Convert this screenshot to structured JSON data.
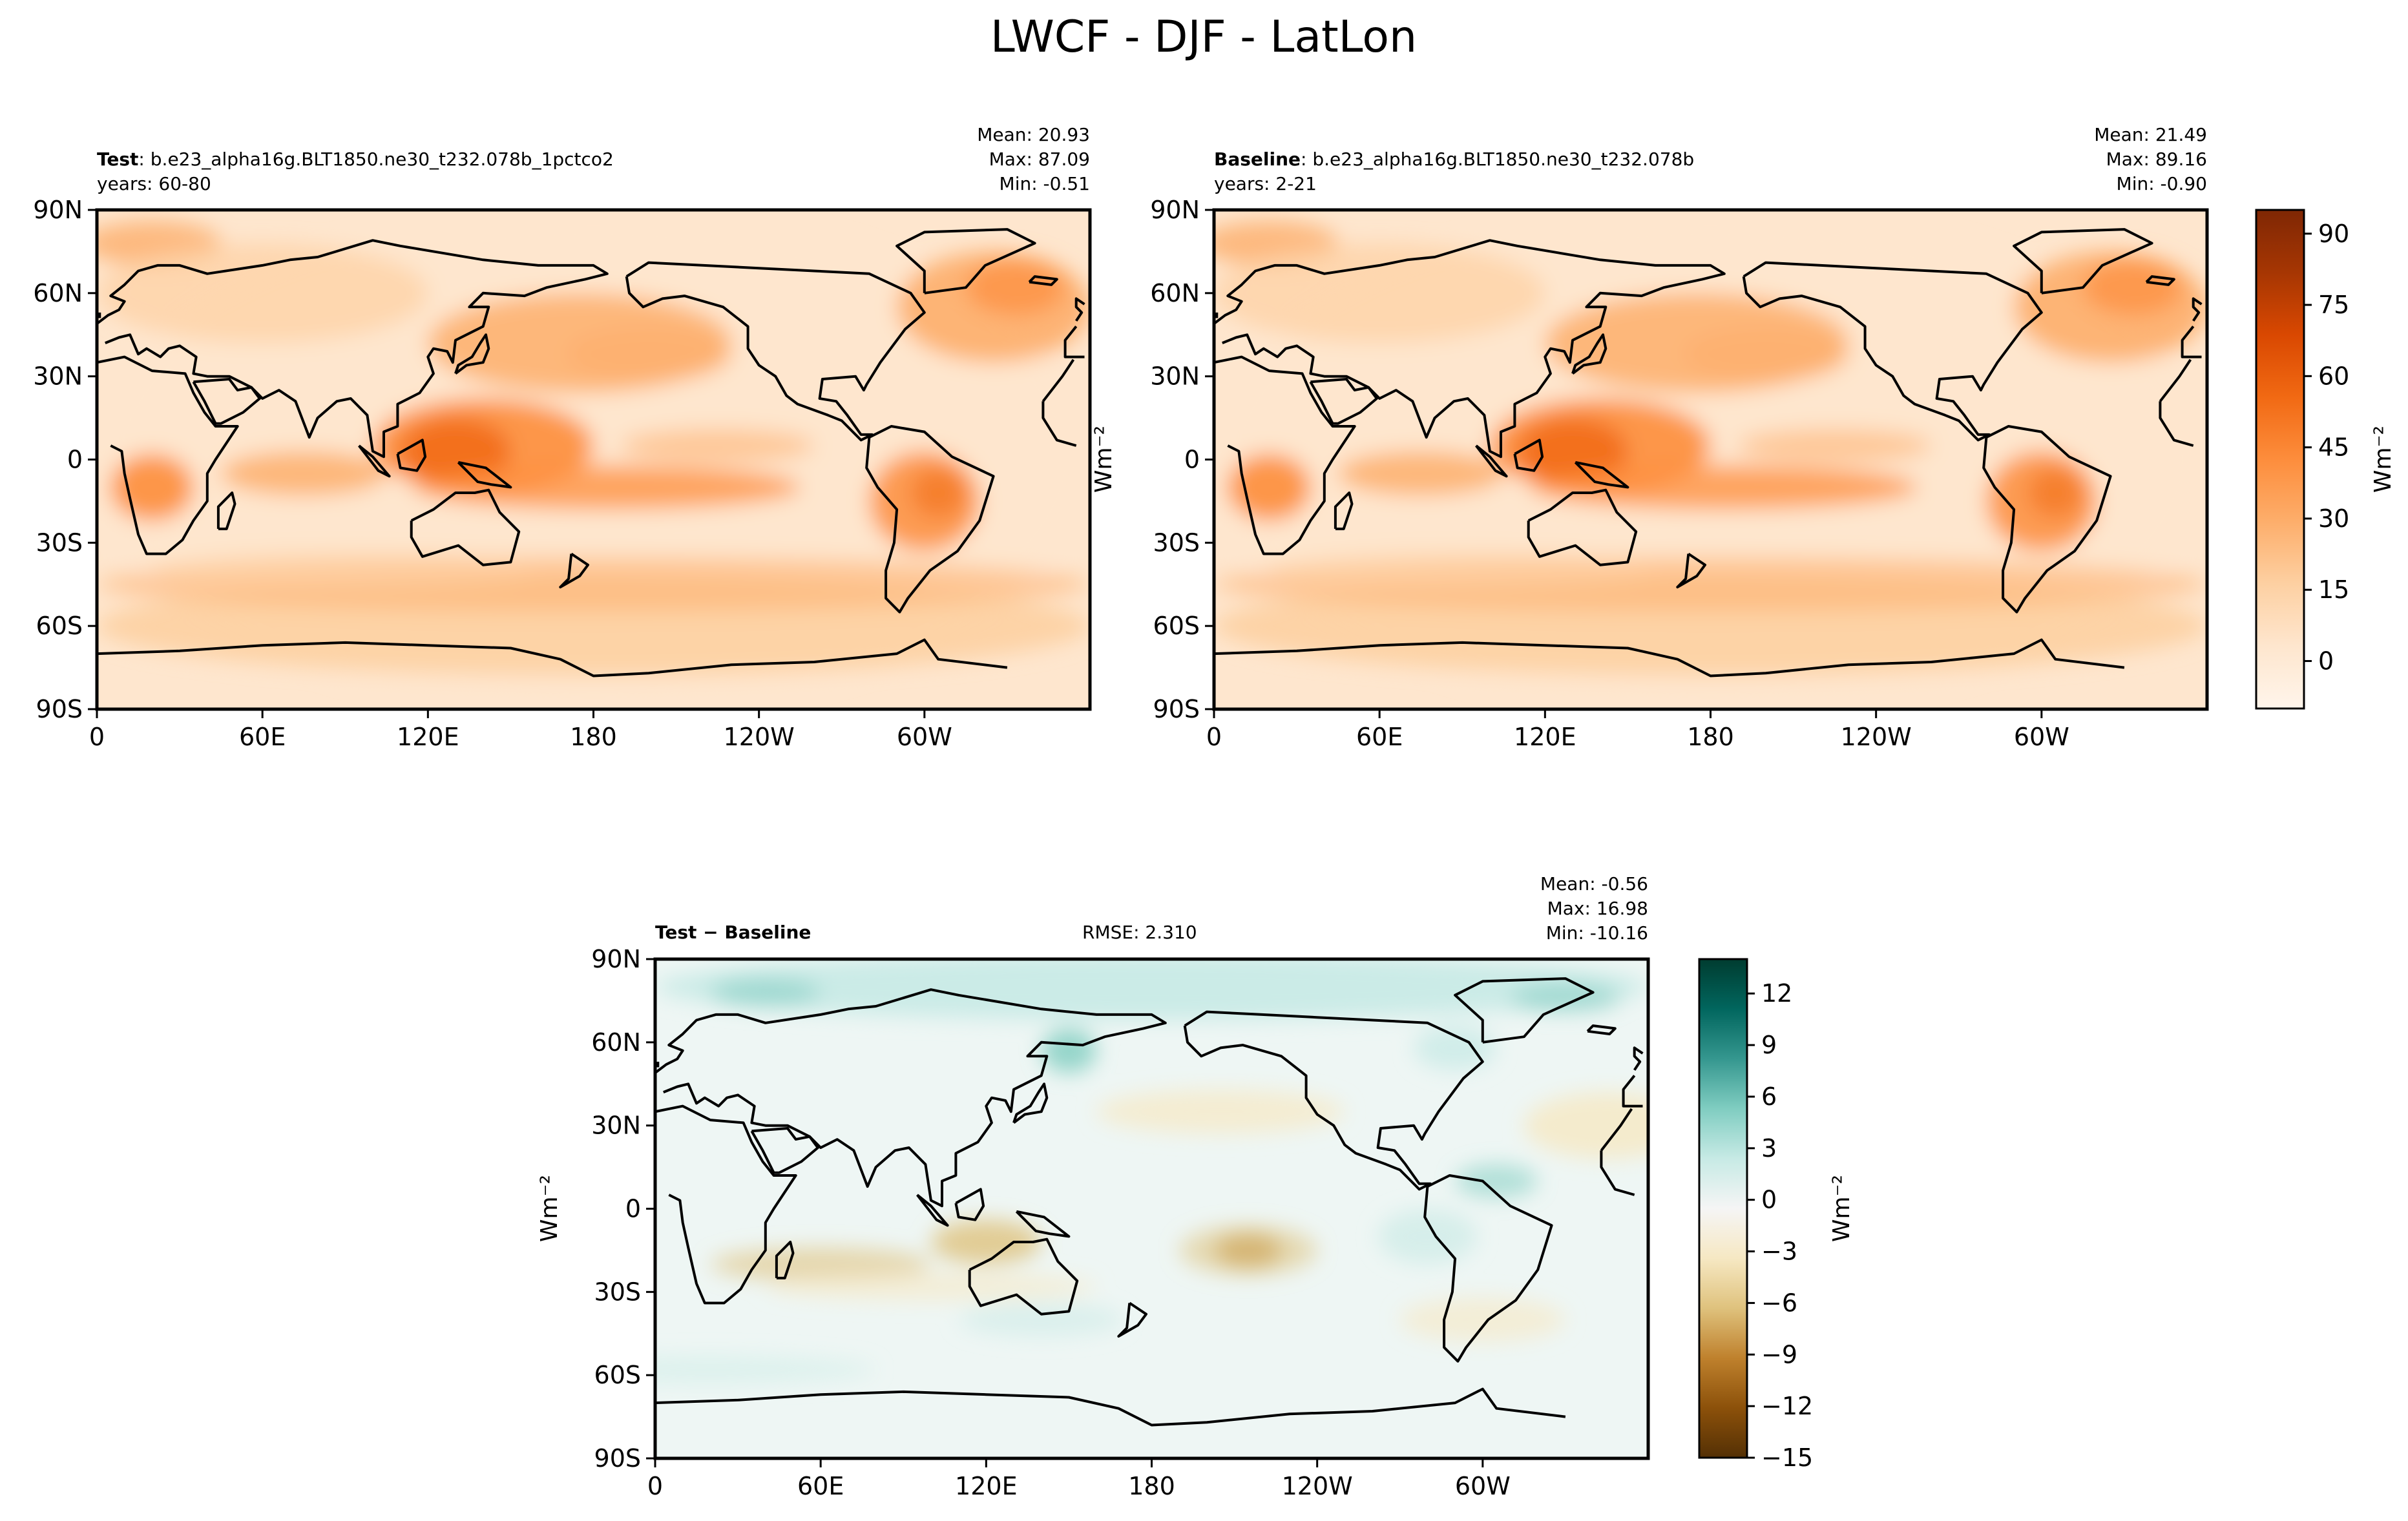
{
  "figure": {
    "title": "LWCF - DJF - LatLon"
  },
  "panels": {
    "test": {
      "label": "Test",
      "case": "b.e23_alpha16g.BLT1850.ne30_t232.078b_1pctco2",
      "years": "60-80",
      "mean": "Mean: 20.93",
      "max": "Max: 87.09",
      "min": "Min: -0.51"
    },
    "baseline": {
      "label": "Baseline",
      "case": "b.e23_alpha16g.BLT1850.ne30_t232.078b",
      "years": "2-21",
      "mean": "Mean: 21.49",
      "max": "Max: 89.16",
      "min": "Min: -0.90"
    },
    "diff": {
      "label_test": "Test",
      "label_baseline": "Baseline",
      "rmse": "RMSE: 2.310",
      "mean": "Mean: -0.56",
      "max": "Max: 16.98",
      "min": "Min: -10.16"
    }
  },
  "chart_data": [
    {
      "type": "heatmap",
      "panel": "test",
      "xticks": [
        "0",
        "60E",
        "120E",
        "180",
        "120W",
        "60W"
      ],
      "yticks": [
        "90N",
        "60N",
        "30N",
        "0",
        "30S",
        "60S",
        "90S"
      ],
      "xlim": [
        0,
        360
      ],
      "ylim": [
        -90,
        90
      ],
      "colormap": "Oranges"
    },
    {
      "type": "heatmap",
      "panel": "baseline",
      "xticks": [
        "0",
        "60E",
        "120E",
        "180",
        "120W",
        "60W"
      ],
      "yticks": [
        "90N",
        "60N",
        "30N",
        "0",
        "30S",
        "60S",
        "90S"
      ],
      "xlim": [
        0,
        360
      ],
      "ylim": [
        -90,
        90
      ],
      "colormap": "Oranges",
      "colorbar": {
        "label": "Wm⁻²",
        "ticks": [
          "90",
          "75",
          "60",
          "45",
          "30",
          "15",
          "0"
        ],
        "range": [
          -10,
          95
        ]
      }
    },
    {
      "type": "heatmap",
      "panel": "test_minus_baseline",
      "xticks": [
        "0",
        "60E",
        "120E",
        "180",
        "120W",
        "60W"
      ],
      "yticks": [
        "90N",
        "60N",
        "30N",
        "0",
        "30S",
        "60S",
        "90S"
      ],
      "ylabel": "Wm⁻²",
      "xlim": [
        0,
        360
      ],
      "ylim": [
        -90,
        90
      ],
      "colormap": "BrBG",
      "colorbar": {
        "label": "Wm⁻²",
        "ticks": [
          "12",
          "9",
          "6",
          "3",
          "0",
          "−3",
          "−6",
          "−9",
          "−12",
          "−15"
        ],
        "range": [
          -15,
          14
        ]
      }
    }
  ],
  "colors": {
    "oranges": [
      "#fff5eb",
      "#fee6ce",
      "#fdd0a2",
      "#fdae6b",
      "#fd8d3c",
      "#f16913",
      "#d94801",
      "#a63603",
      "#7f2704"
    ],
    "brbg": [
      "#543005",
      "#8c510a",
      "#bf812d",
      "#dfc27d",
      "#f6e8c3",
      "#f5f5f5",
      "#c7eae5",
      "#80cdc1",
      "#35978f",
      "#01665e",
      "#003c30"
    ]
  }
}
